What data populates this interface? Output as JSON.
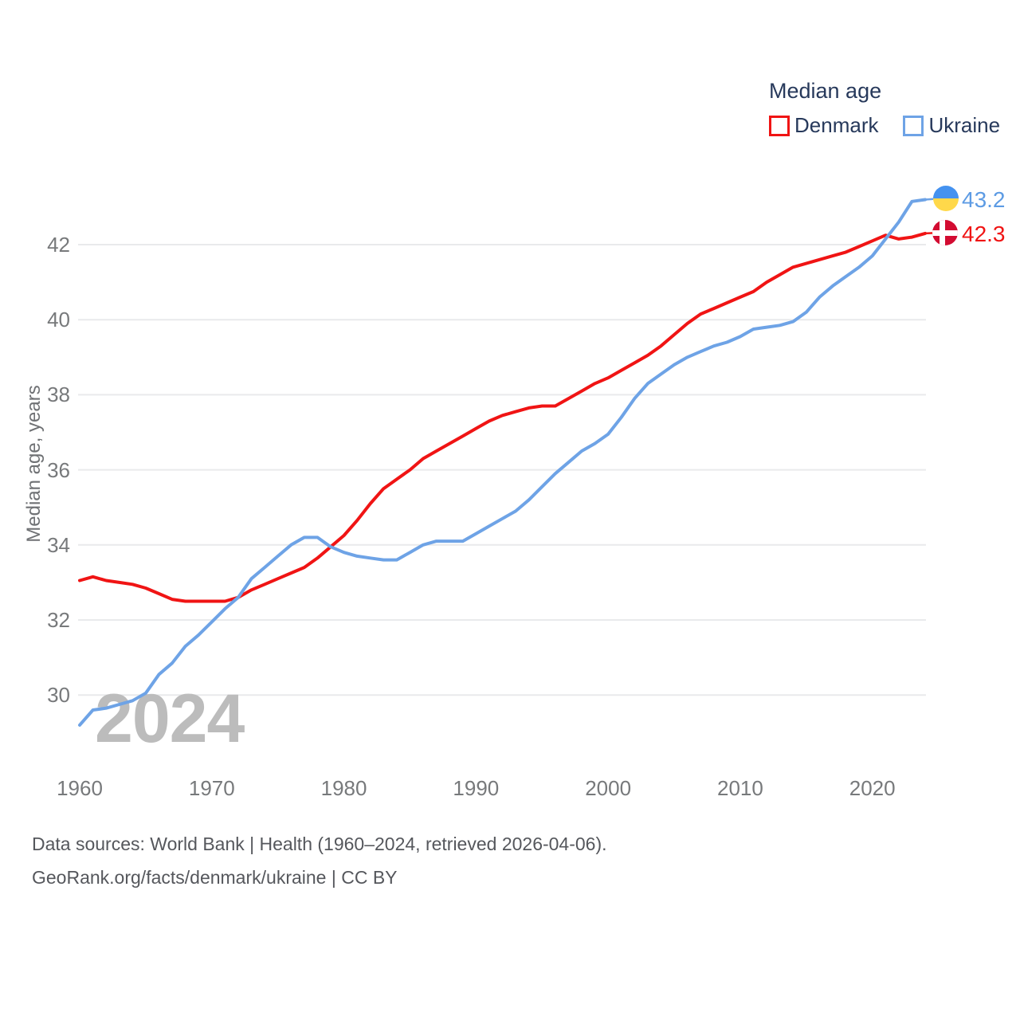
{
  "legend": {
    "title": "Median age",
    "items": [
      {
        "label": "Denmark",
        "color": "#f01414"
      },
      {
        "label": "Ukraine",
        "color": "#6ea3e6"
      }
    ]
  },
  "watermark": {
    "text": "2024"
  },
  "footer": {
    "line1": "Data sources: World Bank | Health (1960–2024, retrieved 2026-04-06).",
    "line2": "GeoRank.org/facts/denmark/ukraine | CC BY"
  },
  "chart_data": {
    "type": "line",
    "title": "Median age",
    "xlabel": "",
    "ylabel": "Median age, years",
    "x_range": [
      1960,
      2024
    ],
    "y_range": [
      28.8,
      43.6
    ],
    "grid": true,
    "legend_position": "top-right",
    "x_ticks": [
      1960,
      1970,
      1980,
      1990,
      2000,
      2010,
      2020
    ],
    "y_ticks": [
      30,
      32,
      34,
      36,
      38,
      40,
      42
    ],
    "years": [
      1960,
      1961,
      1962,
      1963,
      1964,
      1965,
      1966,
      1967,
      1968,
      1969,
      1970,
      1971,
      1972,
      1973,
      1974,
      1975,
      1976,
      1977,
      1978,
      1979,
      1980,
      1981,
      1982,
      1983,
      1984,
      1985,
      1986,
      1987,
      1988,
      1989,
      1990,
      1991,
      1992,
      1993,
      1994,
      1995,
      1996,
      1997,
      1998,
      1999,
      2000,
      2001,
      2002,
      2003,
      2004,
      2005,
      2006,
      2007,
      2008,
      2009,
      2010,
      2011,
      2012,
      2013,
      2014,
      2015,
      2016,
      2017,
      2018,
      2019,
      2020,
      2021,
      2022,
      2023,
      2024
    ],
    "series": [
      {
        "name": "Denmark",
        "color": "#f01414",
        "end_label": "42.3",
        "values": [
          33.05,
          33.15,
          33.05,
          33.0,
          32.95,
          32.85,
          32.7,
          32.55,
          32.5,
          32.5,
          32.5,
          32.5,
          32.6,
          32.8,
          32.95,
          33.1,
          33.25,
          33.4,
          33.65,
          33.95,
          34.25,
          34.65,
          35.1,
          35.5,
          35.75,
          36.0,
          36.3,
          36.5,
          36.7,
          36.9,
          37.1,
          37.3,
          37.45,
          37.55,
          37.65,
          37.7,
          37.7,
          37.9,
          38.1,
          38.3,
          38.45,
          38.65,
          38.85,
          39.05,
          39.3,
          39.6,
          39.9,
          40.15,
          40.3,
          40.45,
          40.6,
          40.75,
          41.0,
          41.2,
          41.4,
          41.5,
          41.6,
          41.7,
          41.8,
          41.95,
          42.1,
          42.25,
          42.15,
          42.2,
          42.3
        ]
      },
      {
        "name": "Ukraine",
        "color": "#6ea3e6",
        "end_label": "43.2",
        "values": [
          29.2,
          29.6,
          29.65,
          29.75,
          29.85,
          30.05,
          30.55,
          30.85,
          31.3,
          31.6,
          31.95,
          32.3,
          32.6,
          33.1,
          33.4,
          33.7,
          34.0,
          34.2,
          34.2,
          33.95,
          33.8,
          33.7,
          33.65,
          33.6,
          33.6,
          33.8,
          34.0,
          34.1,
          34.1,
          34.1,
          34.3,
          34.5,
          34.7,
          34.9,
          35.2,
          35.55,
          35.9,
          36.2,
          36.5,
          36.7,
          36.95,
          37.4,
          37.9,
          38.3,
          38.55,
          38.8,
          39.0,
          39.15,
          39.3,
          39.4,
          39.55,
          39.75,
          39.8,
          39.85,
          39.95,
          40.2,
          40.6,
          40.9,
          41.15,
          41.4,
          41.7,
          42.15,
          42.6,
          43.15,
          43.2
        ]
      }
    ]
  }
}
